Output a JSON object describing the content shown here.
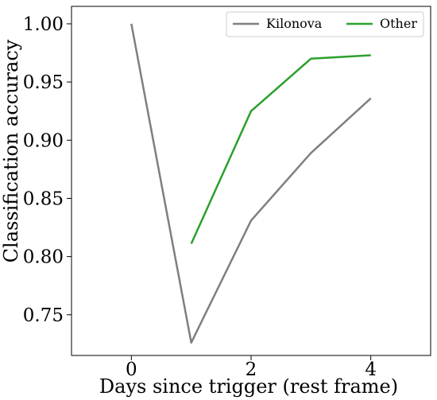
{
  "chart_data": {
    "type": "line",
    "title": "",
    "xlabel": "Days since trigger (rest frame)",
    "ylabel": "Classification accuracy",
    "xlim": [
      -1,
      5
    ],
    "ylim": [
      0.715,
      1.015
    ],
    "xticks": [
      0,
      2,
      4
    ],
    "yticks": [
      0.75,
      0.8,
      0.85,
      0.9,
      0.95,
      1.0
    ],
    "xtick_labels": [
      "0",
      "2",
      "4"
    ],
    "ytick_labels": [
      "0.75",
      "0.80",
      "0.85",
      "0.90",
      "0.95",
      "1.00"
    ],
    "grid": false,
    "legend_position": "top-right",
    "series": [
      {
        "name": "Kilonova",
        "color": "#7f7f7f",
        "x": [
          0,
          1,
          2,
          3,
          4
        ],
        "values": [
          1.0,
          0.726,
          0.831,
          0.889,
          0.936
        ]
      },
      {
        "name": "Other",
        "color": "#2ca02c",
        "x": [
          1,
          2,
          3,
          4
        ],
        "values": [
          0.811,
          0.925,
          0.97,
          0.973
        ]
      }
    ]
  }
}
